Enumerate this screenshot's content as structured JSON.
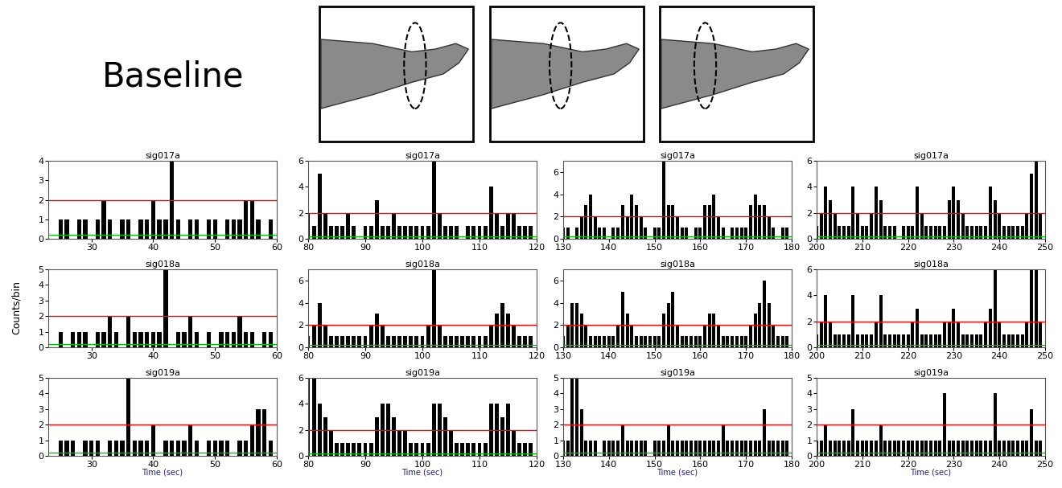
{
  "header": {
    "text": "Baseline"
  },
  "y_label": "Counts/bin",
  "chart_data": [
    {
      "type": "bar",
      "title": "sig017a",
      "color": "#000000",
      "x": [
        25,
        26,
        27,
        28,
        29,
        30,
        31,
        32,
        33,
        34,
        35,
        36,
        37,
        38,
        39,
        40,
        41,
        42,
        43,
        44,
        45,
        46,
        47,
        48,
        49,
        50,
        51,
        52,
        53,
        54,
        55,
        56,
        57,
        58,
        59
      ],
      "values": [
        1,
        1,
        0,
        1,
        1,
        0,
        1,
        2,
        1,
        0,
        1,
        1,
        0,
        1,
        1,
        2,
        1,
        1,
        4,
        1,
        0,
        1,
        1,
        0,
        1,
        1,
        0,
        1,
        1,
        1,
        2,
        2,
        1,
        0,
        1
      ],
      "xlim": [
        23,
        60
      ],
      "xticks": [
        30,
        40,
        50,
        60
      ],
      "ylim": [
        0,
        4
      ],
      "yticks": [
        0,
        1,
        2,
        3,
        4
      ],
      "reference_lines": [
        {
          "value": 2,
          "color": "#ff0000"
        },
        {
          "value": 0.2,
          "color": "#00c000"
        }
      ]
    },
    {
      "type": "bar",
      "title": "sig017a",
      "color": "#000000",
      "x": [
        80,
        81,
        82,
        83,
        84,
        85,
        86,
        87,
        88,
        89,
        90,
        91,
        92,
        93,
        94,
        95,
        96,
        97,
        98,
        99,
        100,
        101,
        102,
        103,
        104,
        105,
        106,
        107,
        108,
        109,
        110,
        111,
        112,
        113,
        114,
        115,
        116,
        117,
        118,
        119
      ],
      "values": [
        2,
        1,
        5,
        2,
        1,
        1,
        1,
        2,
        1,
        0,
        1,
        1,
        3,
        1,
        1,
        2,
        1,
        1,
        1,
        1,
        1,
        1,
        6,
        2,
        1,
        1,
        1,
        0,
        1,
        1,
        1,
        1,
        4,
        2,
        1,
        2,
        2,
        1,
        1,
        1
      ],
      "xlim": [
        80,
        120
      ],
      "xticks": [
        80,
        90,
        100,
        110,
        120
      ],
      "ylim": [
        0,
        6
      ],
      "yticks": [
        0,
        2,
        4,
        6
      ],
      "reference_lines": [
        {
          "value": 2,
          "color": "#ff0000"
        },
        {
          "value": 0.2,
          "color": "#00c000"
        }
      ]
    },
    {
      "type": "bar",
      "title": "sig017a",
      "color": "#000000",
      "x": [
        130,
        131,
        132,
        133,
        134,
        135,
        136,
        137,
        138,
        139,
        140,
        141,
        142,
        143,
        144,
        145,
        146,
        147,
        148,
        149,
        150,
        151,
        152,
        153,
        154,
        155,
        156,
        157,
        158,
        159,
        160,
        161,
        162,
        163,
        164,
        165,
        166,
        167,
        168,
        169,
        170,
        171,
        172,
        173,
        174,
        175,
        176,
        177,
        178,
        179
      ],
      "values": [
        1,
        1,
        0,
        1,
        2,
        3,
        4,
        2,
        1,
        1,
        0,
        1,
        1,
        3,
        2,
        4,
        3,
        2,
        1,
        0,
        1,
        1,
        7,
        3,
        3,
        2,
        1,
        1,
        0,
        1,
        1,
        3,
        3,
        4,
        2,
        1,
        0,
        1,
        1,
        1,
        1,
        3,
        4,
        3,
        3,
        2,
        1,
        0,
        1,
        1
      ],
      "xlim": [
        130,
        180
      ],
      "xticks": [
        130,
        140,
        150,
        160,
        170,
        180
      ],
      "ylim": [
        0,
        7
      ],
      "yticks": [
        0,
        2,
        4,
        6
      ],
      "reference_lines": [
        {
          "value": 2,
          "color": "#ff0000"
        },
        {
          "value": 0.2,
          "color": "#00c000"
        }
      ]
    },
    {
      "type": "bar",
      "title": "sig017a",
      "color": "#000000",
      "x": [
        200,
        201,
        202,
        203,
        204,
        205,
        206,
        207,
        208,
        209,
        210,
        211,
        212,
        213,
        214,
        215,
        216,
        217,
        218,
        219,
        220,
        221,
        222,
        223,
        224,
        225,
        226,
        227,
        228,
        229,
        230,
        231,
        232,
        233,
        234,
        235,
        236,
        237,
        238,
        239,
        240,
        241,
        242,
        243,
        244,
        245,
        246,
        247,
        248,
        249
      ],
      "values": [
        1,
        2,
        4,
        3,
        2,
        1,
        1,
        1,
        4,
        2,
        1,
        1,
        2,
        4,
        3,
        1,
        1,
        1,
        0,
        1,
        1,
        1,
        4,
        2,
        1,
        1,
        1,
        1,
        1,
        3,
        4,
        3,
        2,
        1,
        1,
        1,
        1,
        1,
        4,
        3,
        2,
        1,
        1,
        1,
        1,
        1,
        2,
        5,
        6,
        2
      ],
      "xlim": [
        200,
        250
      ],
      "xticks": [
        200,
        210,
        220,
        230,
        240,
        250
      ],
      "ylim": [
        0,
        6
      ],
      "yticks": [
        0,
        2,
        4,
        6
      ],
      "reference_lines": [
        {
          "value": 2,
          "color": "#ff0000"
        },
        {
          "value": 0.2,
          "color": "#00c000"
        }
      ]
    },
    {
      "type": "bar",
      "title": "sig018a",
      "color": "#000000",
      "x": [
        25,
        26,
        27,
        28,
        29,
        30,
        31,
        32,
        33,
        34,
        35,
        36,
        37,
        38,
        39,
        40,
        41,
        42,
        43,
        44,
        45,
        46,
        47,
        48,
        49,
        50,
        51,
        52,
        53,
        54,
        55,
        56,
        57,
        58,
        59
      ],
      "values": [
        1,
        0,
        1,
        1,
        1,
        0,
        1,
        1,
        2,
        1,
        0,
        2,
        1,
        1,
        1,
        1,
        1,
        5,
        0,
        1,
        1,
        2,
        1,
        0,
        1,
        0,
        1,
        1,
        1,
        2,
        1,
        1,
        0,
        1,
        1
      ],
      "xlim": [
        23,
        60
      ],
      "xticks": [
        30,
        40,
        50,
        60
      ],
      "ylim": [
        0,
        5
      ],
      "yticks": [
        0,
        1,
        2,
        3,
        4,
        5
      ],
      "reference_lines": [
        {
          "value": 2,
          "color": "#ff0000"
        },
        {
          "value": 0.2,
          "color": "#00c000"
        }
      ]
    },
    {
      "type": "bar",
      "title": "sig018a",
      "color": "#000000",
      "x": [
        80,
        81,
        82,
        83,
        84,
        85,
        86,
        87,
        88,
        89,
        90,
        91,
        92,
        93,
        94,
        95,
        96,
        97,
        98,
        99,
        100,
        101,
        102,
        103,
        104,
        105,
        106,
        107,
        108,
        109,
        110,
        111,
        112,
        113,
        114,
        115,
        116,
        117,
        118,
        119
      ],
      "values": [
        1,
        2,
        4,
        2,
        1,
        1,
        1,
        1,
        1,
        1,
        1,
        2,
        3,
        2,
        1,
        1,
        1,
        1,
        1,
        1,
        1,
        2,
        7,
        2,
        1,
        1,
        1,
        1,
        1,
        1,
        1,
        1,
        2,
        3,
        4,
        3,
        2,
        1,
        1,
        1
      ],
      "xlim": [
        80,
        120
      ],
      "xticks": [
        80,
        90,
        100,
        110,
        120
      ],
      "ylim": [
        0,
        7
      ],
      "yticks": [
        0,
        2,
        4,
        6
      ],
      "reference_lines": [
        {
          "value": 2,
          "color": "#ff0000"
        },
        {
          "value": 0.2,
          "color": "#00c000"
        }
      ]
    },
    {
      "type": "bar",
      "title": "sig018a",
      "color": "#000000",
      "x": [
        130,
        131,
        132,
        133,
        134,
        135,
        136,
        137,
        138,
        139,
        140,
        141,
        142,
        143,
        144,
        145,
        146,
        147,
        148,
        149,
        150,
        151,
        152,
        153,
        154,
        155,
        156,
        157,
        158,
        159,
        160,
        161,
        162,
        163,
        164,
        165,
        166,
        167,
        168,
        169,
        170,
        171,
        172,
        173,
        174,
        175,
        176,
        177,
        178,
        179
      ],
      "values": [
        1,
        2,
        4,
        4,
        3,
        2,
        1,
        1,
        1,
        1,
        1,
        1,
        2,
        5,
        3,
        2,
        1,
        1,
        1,
        1,
        1,
        1,
        3,
        4,
        5,
        2,
        1,
        1,
        1,
        1,
        1,
        2,
        3,
        3,
        2,
        1,
        1,
        1,
        1,
        1,
        1,
        2,
        3,
        4,
        6,
        4,
        2,
        1,
        1,
        1
      ],
      "xlim": [
        130,
        180
      ],
      "xticks": [
        130,
        140,
        150,
        160,
        170,
        180
      ],
      "ylim": [
        0,
        7
      ],
      "yticks": [
        0,
        2,
        4,
        6
      ],
      "reference_lines": [
        {
          "value": 2,
          "color": "#ff0000"
        },
        {
          "value": 0.2,
          "color": "#00c000"
        }
      ]
    },
    {
      "type": "bar",
      "title": "sig018a",
      "color": "#000000",
      "x": [
        200,
        201,
        202,
        203,
        204,
        205,
        206,
        207,
        208,
        209,
        210,
        211,
        212,
        213,
        214,
        215,
        216,
        217,
        218,
        219,
        220,
        221,
        222,
        223,
        224,
        225,
        226,
        227,
        228,
        229,
        230,
        231,
        232,
        233,
        234,
        235,
        236,
        237,
        238,
        239,
        240,
        241,
        242,
        243,
        244,
        245,
        246,
        247,
        248,
        249
      ],
      "values": [
        1,
        2,
        4,
        2,
        1,
        1,
        1,
        1,
        4,
        1,
        1,
        1,
        1,
        2,
        4,
        1,
        1,
        1,
        1,
        1,
        1,
        2,
        3,
        1,
        1,
        1,
        1,
        1,
        2,
        2,
        3,
        2,
        1,
        1,
        1,
        1,
        1,
        2,
        3,
        6,
        2,
        1,
        1,
        1,
        1,
        1,
        2,
        6,
        6,
        2
      ],
      "xlim": [
        200,
        250
      ],
      "xticks": [
        200,
        210,
        220,
        230,
        240,
        250
      ],
      "ylim": [
        0,
        6
      ],
      "yticks": [
        0,
        2,
        4,
        6
      ],
      "reference_lines": [
        {
          "value": 2,
          "color": "#ff0000"
        },
        {
          "value": 0.2,
          "color": "#00c000"
        }
      ]
    },
    {
      "type": "bar",
      "title": "sig019a",
      "color": "#000000",
      "x_label": "Time (sec)",
      "x": [
        25,
        26,
        27,
        28,
        29,
        30,
        31,
        32,
        33,
        34,
        35,
        36,
        37,
        38,
        39,
        40,
        41,
        42,
        43,
        44,
        45,
        46,
        47,
        48,
        49,
        50,
        51,
        52,
        53,
        54,
        55,
        56,
        57,
        58,
        59
      ],
      "values": [
        1,
        1,
        1,
        0,
        1,
        1,
        1,
        0,
        1,
        1,
        1,
        5,
        1,
        1,
        1,
        2,
        0,
        1,
        1,
        1,
        1,
        2,
        1,
        0,
        1,
        1,
        1,
        1,
        0,
        1,
        1,
        2,
        3,
        3,
        1
      ],
      "xlim": [
        23,
        60
      ],
      "xticks": [
        30,
        40,
        50,
        60
      ],
      "ylim": [
        0,
        5
      ],
      "yticks": [
        0,
        1,
        2,
        3,
        4,
        5
      ],
      "reference_lines": [
        {
          "value": 2,
          "color": "#ff0000"
        },
        {
          "value": 0.2,
          "color": "#00c000"
        }
      ]
    },
    {
      "type": "bar",
      "title": "sig019a",
      "color": "#000000",
      "x_label": "Time (sec)",
      "x": [
        80,
        81,
        82,
        83,
        84,
        85,
        86,
        87,
        88,
        89,
        90,
        91,
        92,
        93,
        94,
        95,
        96,
        97,
        98,
        99,
        100,
        101,
        102,
        103,
        104,
        105,
        106,
        107,
        108,
        109,
        110,
        111,
        112,
        113,
        114,
        115,
        116,
        117,
        118,
        119
      ],
      "values": [
        6,
        6,
        4,
        3,
        2,
        1,
        1,
        1,
        1,
        1,
        1,
        1,
        3,
        4,
        4,
        3,
        2,
        2,
        1,
        1,
        1,
        1,
        4,
        4,
        3,
        2,
        1,
        1,
        1,
        1,
        1,
        1,
        4,
        4,
        3,
        4,
        2,
        1,
        1,
        1
      ],
      "xlim": [
        80,
        120
      ],
      "xticks": [
        80,
        90,
        100,
        110,
        120
      ],
      "ylim": [
        0,
        6
      ],
      "yticks": [
        0,
        2,
        4,
        6
      ],
      "reference_lines": [
        {
          "value": 2,
          "color": "#ff0000"
        },
        {
          "value": 0.2,
          "color": "#00c000"
        }
      ]
    },
    {
      "type": "bar",
      "title": "sig019a",
      "color": "#000000",
      "x_label": "Time (sec)",
      "x": [
        130,
        131,
        132,
        133,
        134,
        135,
        136,
        137,
        138,
        139,
        140,
        141,
        142,
        143,
        144,
        145,
        146,
        147,
        148,
        149,
        150,
        151,
        152,
        153,
        154,
        155,
        156,
        157,
        158,
        159,
        160,
        161,
        162,
        163,
        164,
        165,
        166,
        167,
        168,
        169,
        170,
        171,
        172,
        173,
        174,
        175,
        176,
        177,
        178,
        179
      ],
      "values": [
        1,
        1,
        5,
        5,
        3,
        1,
        1,
        1,
        0,
        1,
        1,
        1,
        1,
        2,
        1,
        1,
        1,
        1,
        1,
        0,
        1,
        1,
        1,
        2,
        1,
        1,
        1,
        1,
        1,
        1,
        1,
        1,
        1,
        1,
        1,
        2,
        1,
        1,
        1,
        1,
        1,
        1,
        1,
        1,
        3,
        1,
        1,
        1,
        1,
        1
      ],
      "xlim": [
        130,
        180
      ],
      "xticks": [
        130,
        140,
        150,
        160,
        170,
        180
      ],
      "ylim": [
        0,
        5
      ],
      "yticks": [
        0,
        1,
        2,
        3,
        4,
        5
      ],
      "reference_lines": [
        {
          "value": 2,
          "color": "#ff0000"
        },
        {
          "value": 0.2,
          "color": "#00c000"
        }
      ]
    },
    {
      "type": "bar",
      "title": "sig019a",
      "color": "#000000",
      "x_label": "Time (sec)",
      "x": [
        200,
        201,
        202,
        203,
        204,
        205,
        206,
        207,
        208,
        209,
        210,
        211,
        212,
        213,
        214,
        215,
        216,
        217,
        218,
        219,
        220,
        221,
        222,
        223,
        224,
        225,
        226,
        227,
        228,
        229,
        230,
        231,
        232,
        233,
        234,
        235,
        236,
        237,
        238,
        239,
        240,
        241,
        242,
        243,
        244,
        245,
        246,
        247,
        248,
        249
      ],
      "values": [
        1,
        1,
        2,
        1,
        1,
        1,
        1,
        1,
        3,
        1,
        1,
        1,
        1,
        1,
        2,
        1,
        1,
        1,
        1,
        1,
        1,
        1,
        1,
        1,
        1,
        1,
        1,
        1,
        4,
        1,
        1,
        1,
        1,
        1,
        1,
        1,
        1,
        1,
        1,
        4,
        1,
        1,
        1,
        1,
        1,
        1,
        1,
        3,
        1,
        1
      ],
      "xlim": [
        200,
        250
      ],
      "xticks": [
        200,
        210,
        220,
        230,
        240,
        250
      ],
      "ylim": [
        0,
        5
      ],
      "yticks": [
        0,
        1,
        2,
        3,
        4,
        5
      ],
      "reference_lines": [
        {
          "value": 2,
          "color": "#ff0000"
        },
        {
          "value": 0.2,
          "color": "#00c000"
        }
      ]
    }
  ]
}
